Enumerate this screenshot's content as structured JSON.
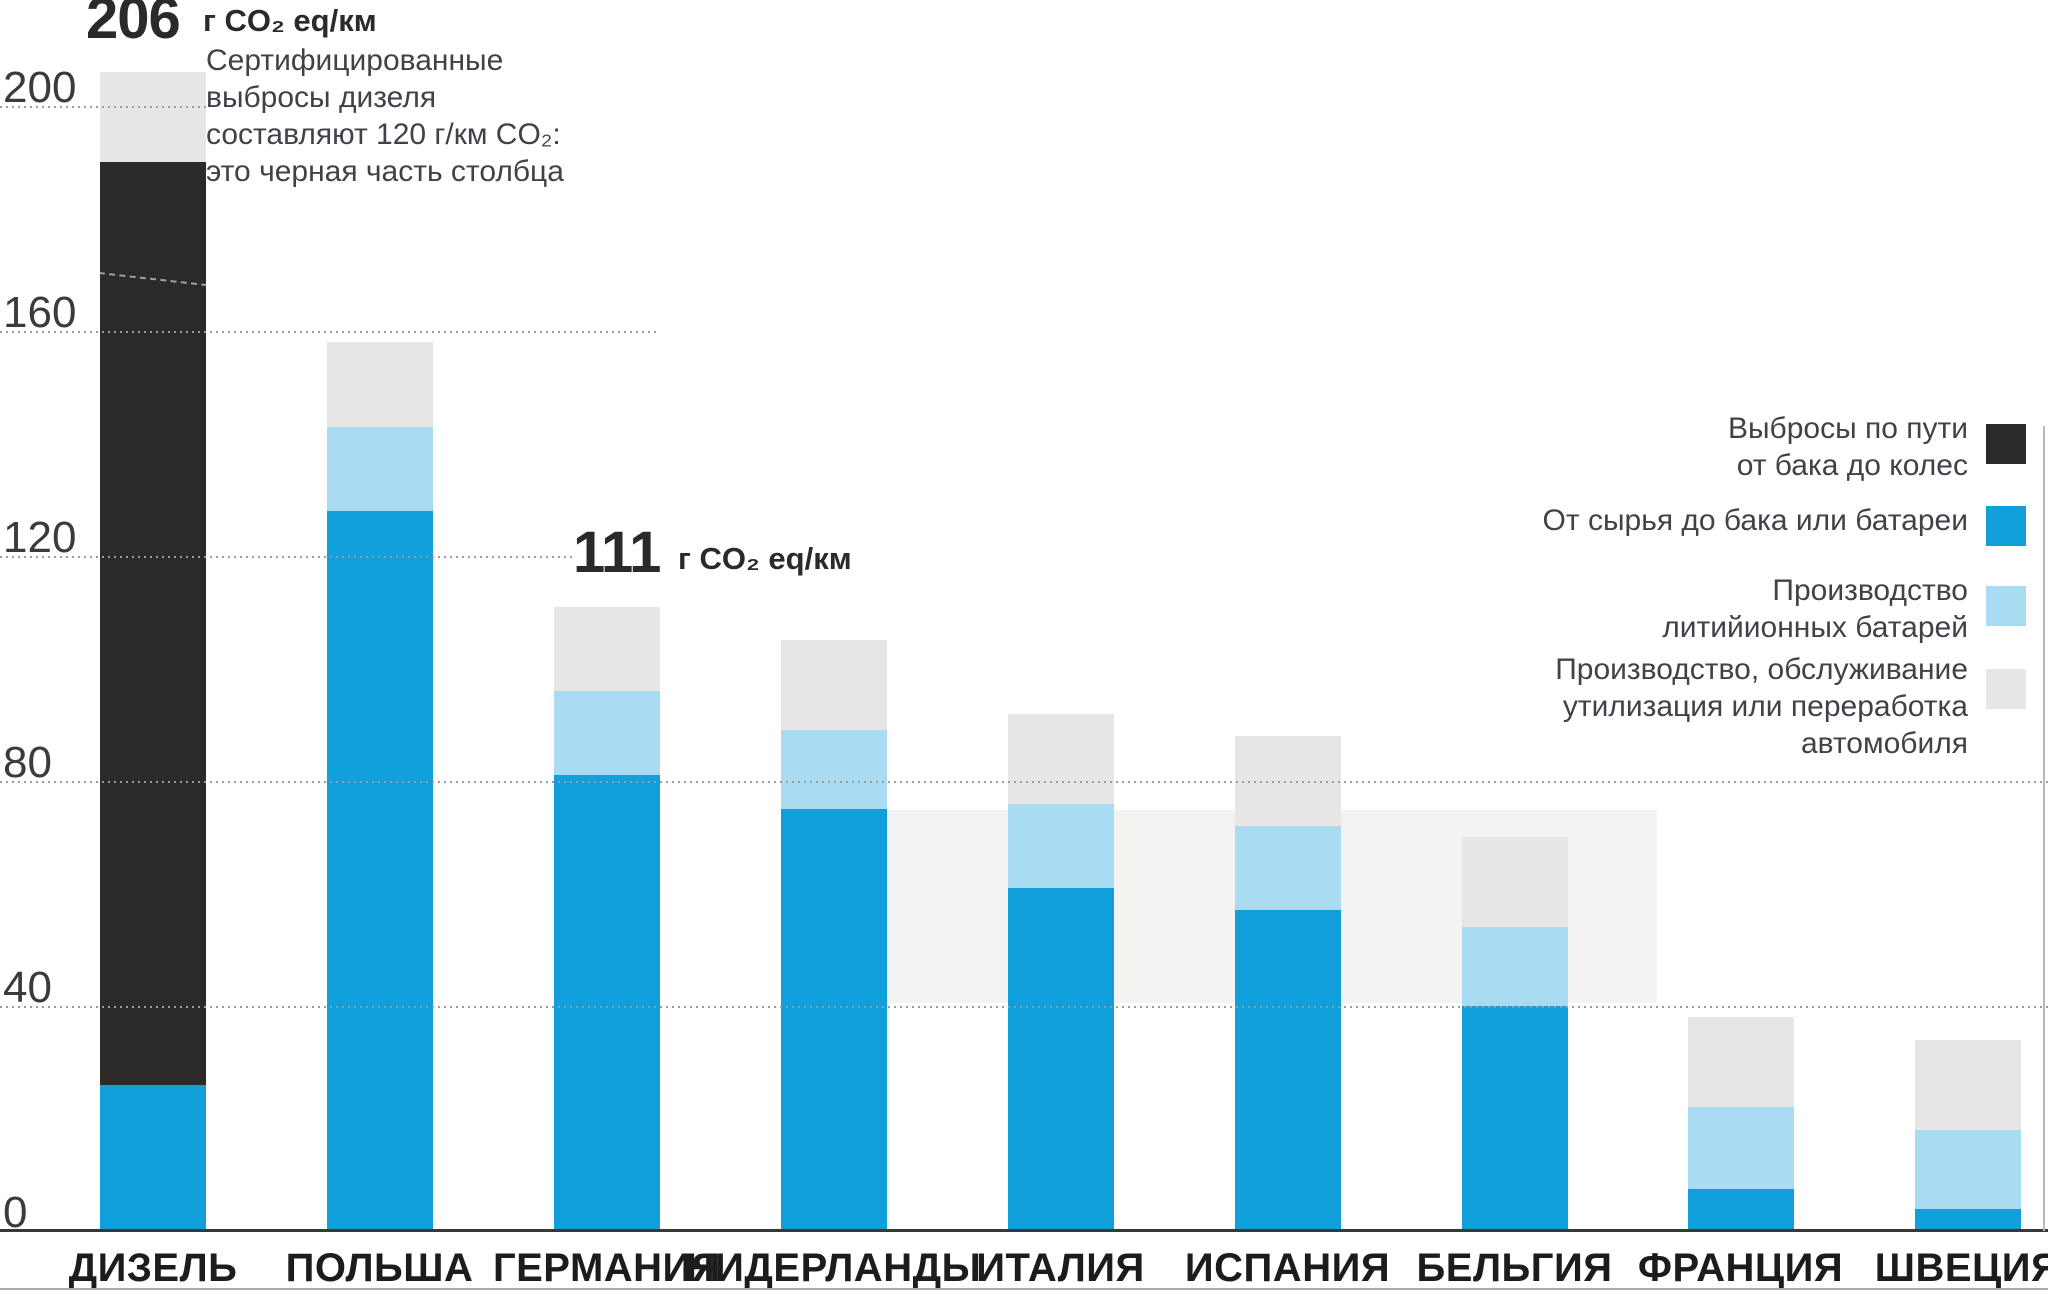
{
  "diesel_annotation": {
    "value": "206",
    "unit": "г CO₂ eq/км",
    "note_lines": [
      "Сертифицированные",
      "выбросы дизеля",
      "составляют 120 г/км CO₂:",
      "это черная часть столбца"
    ]
  },
  "germany_annotation": {
    "value": "111",
    "unit": "г CO₂ eq/км"
  },
  "legend": {
    "items": [
      {
        "lines": [
          "Выбросы по пути",
          "от бака до колес"
        ],
        "color": "#2b2a28"
      },
      {
        "lines": [
          "От сырья до бака или батареи"
        ],
        "color": "#119fdc"
      },
      {
        "lines": [
          "Производство",
          "литийионных батарей"
        ],
        "color": "#a9dcf3"
      },
      {
        "lines": [
          "Производство, обслуживание",
          "утилизация или переработка",
          "автомобиля"
        ],
        "color": "#e7e6e5"
      }
    ]
  },
  "colors": {
    "tank_to_wheel_black": "#2b2a28",
    "well_to_tank_blue": "#119fdc",
    "battery_production_lightblue": "#a9dcf3",
    "car_production_gray": "#e7e6e5",
    "background_band": "#f3f3f2"
  },
  "chart_data": {
    "type": "bar",
    "stacked": true,
    "unit": "г CO₂ eq/км",
    "categories": [
      "ДИЗЕЛЬ",
      "ПОЛЬША",
      "ГЕРМАНИЯ",
      "НИДЕРЛАНДЫ",
      "ИТАЛИЯ",
      "ИСПАНИЯ",
      "БЕЛЬГИЯ",
      "ФРАНЦИЯ",
      "ШВЕЦИЯ"
    ],
    "series": [
      {
        "name": "От сырья до бака или батареи",
        "color": "#119fdc",
        "values": [
          26,
          128,
          81,
          75,
          61,
          57,
          40,
          7.5,
          4
        ]
      },
      {
        "name": "Выбросы по пути от бака до колес",
        "color": "#2b2a28",
        "values": [
          164,
          0,
          0,
          0,
          0,
          0,
          0,
          0,
          0
        ]
      },
      {
        "name": "Производство литийионных батарей",
        "color": "#a9dcf3",
        "values": [
          0,
          15,
          15,
          14,
          15,
          15,
          14,
          14.5,
          14
        ]
      },
      {
        "name": "Производство, обслуживание, утилизация или переработка автомобиля",
        "color": "#e7e6e5",
        "values": [
          16,
          15,
          15,
          16,
          16,
          16,
          16,
          16,
          16
        ]
      }
    ],
    "totals": [
      206,
      158,
      111,
      105,
      92,
      88,
      70,
      38,
      34
    ],
    "labeled_totals": {
      "ДИЗЕЛЬ": "206",
      "ГЕРМАНИЯ": "111"
    },
    "certified_diesel_note_value": "120 г/км CO₂",
    "yticks": [
      0,
      40,
      80,
      120,
      160,
      200
    ],
    "ylim": [
      0,
      206
    ],
    "grid": "dotted horizontal",
    "legend_position": "right"
  }
}
